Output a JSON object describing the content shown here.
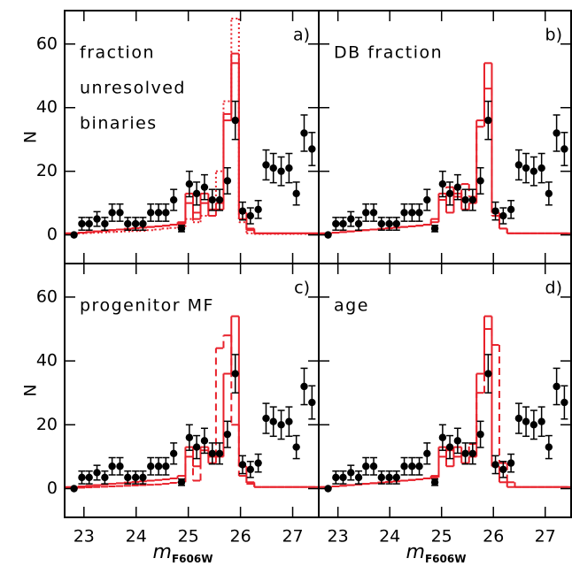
{
  "chart_data": [
    {
      "type": "step",
      "label": "a)",
      "annotation": [
        "fraction",
        "unresolved",
        "binaries"
      ],
      "ylabel": "N",
      "xlim": [
        22.63,
        27.5
      ],
      "ylim": [
        -9,
        70.5
      ],
      "xticks": [
        23,
        24,
        25,
        26,
        27
      ],
      "yticks": [
        0,
        20,
        40,
        60
      ],
      "x": [
        22.81,
        22.96,
        23.1,
        23.25,
        23.4,
        23.54,
        23.69,
        23.84,
        23.99,
        24.13,
        24.28,
        24.43,
        24.57,
        24.72,
        24.87,
        25.02,
        25.16,
        25.31,
        25.46,
        25.6,
        25.75,
        25.9,
        26.04,
        26.19,
        26.34,
        26.49,
        26.63,
        26.78,
        26.93,
        27.07,
        27.22,
        27.37
      ],
      "points": {
        "color": "#000000",
        "values": [
          0,
          3.5,
          3.5,
          5,
          3.5,
          7,
          7,
          3.5,
          3.5,
          3.5,
          7,
          7,
          7,
          11,
          2,
          16,
          13,
          15,
          11,
          11,
          17,
          36,
          7.5,
          6,
          8,
          22,
          21,
          20,
          21,
          13,
          32,
          27
        ],
        "errors": [
          0,
          2,
          2,
          2.3,
          2,
          2.7,
          2.7,
          2,
          2,
          2,
          2.7,
          2.7,
          2.7,
          3.3,
          1,
          4,
          3.6,
          3.9,
          3.3,
          3.3,
          4.1,
          6,
          2.8,
          2.5,
          2.8,
          4.7,
          4.6,
          4.5,
          4.6,
          3.6,
          5.7,
          5.2
        ]
      },
      "series": [
        {
          "color": "#e8202a",
          "dash": "solid",
          "values": [
            0.5,
            0.7,
            0.9,
            1.1,
            1.3,
            1.5,
            1.7,
            1.9,
            2.1,
            2.3,
            2.5,
            2.7,
            2.9,
            3.2,
            4,
            13,
            7,
            13,
            8,
            10,
            36,
            54,
            7,
            2,
            0.5,
            0.5,
            0.5,
            0.5,
            0.5,
            0.5,
            0.5,
            0.5
          ]
        },
        {
          "color": "#e8202a",
          "dash": "solid",
          "values": [
            0.5,
            0.7,
            0.9,
            1.1,
            1.3,
            1.5,
            1.7,
            1.9,
            2.1,
            2.3,
            2.5,
            2.7,
            2.9,
            3.2,
            3.5,
            10,
            5,
            10,
            6,
            8,
            38,
            57,
            5,
            1.5,
            0.5,
            0.5,
            0.5,
            0.5,
            0.5,
            0.5,
            0.5,
            0.5
          ]
        },
        {
          "color": "#e8202a",
          "dash": "dotted",
          "values": [
            0.4,
            0.5,
            0.6,
            0.7,
            0.8,
            0.9,
            1,
            1.1,
            1.2,
            1.3,
            1.5,
            1.7,
            2,
            2.2,
            2.5,
            5,
            4,
            6,
            8,
            20,
            42,
            68,
            4,
            0.5,
            0.3,
            0.3,
            0.3,
            0.3,
            0.3,
            0.3,
            0.3,
            0.3
          ]
        }
      ]
    },
    {
      "type": "step",
      "label": "b)",
      "annotation": [
        "DB fraction"
      ],
      "xlim": [
        22.63,
        27.5
      ],
      "ylim": [
        -9,
        70.5
      ],
      "xticks": [
        23,
        24,
        25,
        26,
        27
      ],
      "yticks": [
        0,
        20,
        40,
        60
      ],
      "x": [
        22.81,
        22.96,
        23.1,
        23.25,
        23.4,
        23.54,
        23.69,
        23.84,
        23.99,
        24.13,
        24.28,
        24.43,
        24.57,
        24.72,
        24.87,
        25.02,
        25.16,
        25.31,
        25.46,
        25.6,
        25.75,
        25.9,
        26.04,
        26.19,
        26.34,
        26.49,
        26.63,
        26.78,
        26.93,
        27.07,
        27.22,
        27.37
      ],
      "points": {
        "color": "#000000",
        "values": [
          0,
          3.5,
          3.5,
          5,
          3.5,
          7,
          7,
          3.5,
          3.5,
          3.5,
          7,
          7,
          7,
          11,
          2,
          16,
          13,
          15,
          11,
          11,
          17,
          36,
          7.5,
          6,
          8,
          22,
          21,
          20,
          21,
          13,
          32,
          27
        ],
        "errors": [
          0,
          2,
          2,
          2.3,
          2,
          2.7,
          2.7,
          2,
          2,
          2,
          2.7,
          2.7,
          2.7,
          3.3,
          1,
          4,
          3.6,
          3.9,
          3.3,
          3.3,
          4.1,
          6,
          2.8,
          2.5,
          2.8,
          4.7,
          4.6,
          4.5,
          4.6,
          3.6,
          5.7,
          5.2
        ]
      },
      "series": [
        {
          "color": "#e8202a",
          "dash": "solid",
          "values": [
            0.5,
            0.7,
            0.9,
            1.1,
            1.3,
            1.5,
            1.7,
            1.9,
            2.1,
            2.3,
            2.5,
            2.7,
            2.9,
            3.2,
            4,
            13,
            7,
            13,
            8,
            10,
            36,
            54,
            7,
            2,
            0.5,
            0.5,
            0.5,
            0.5,
            0.5,
            0.5,
            0.5,
            0.5
          ]
        },
        {
          "color": "#e8202a",
          "dash": "dashed",
          "values": [
            0.5,
            0.7,
            0.9,
            1.1,
            1.3,
            1.5,
            1.7,
            1.9,
            2.1,
            2.3,
            2.5,
            2.7,
            2.9,
            3.2,
            5,
            11,
            15,
            12,
            16,
            12,
            34,
            46,
            6,
            2,
            0.5,
            0.5,
            0.5,
            0.5,
            0.5,
            0.5,
            0.5,
            0.5
          ]
        }
      ]
    },
    {
      "type": "step",
      "label": "c)",
      "annotation": [
        "progenitor MF"
      ],
      "ylabel": "N",
      "xlabel": "m",
      "xlabel_sub": "F606W",
      "xlim": [
        22.63,
        27.5
      ],
      "ylim": [
        -9,
        70.5
      ],
      "xticks": [
        23,
        24,
        25,
        26,
        27
      ],
      "yticks": [
        0,
        20,
        40,
        60
      ],
      "x": [
        22.81,
        22.96,
        23.1,
        23.25,
        23.4,
        23.54,
        23.69,
        23.84,
        23.99,
        24.13,
        24.28,
        24.43,
        24.57,
        24.72,
        24.87,
        25.02,
        25.16,
        25.31,
        25.46,
        25.6,
        25.75,
        25.9,
        26.04,
        26.19,
        26.34,
        26.49,
        26.63,
        26.78,
        26.93,
        27.07,
        27.22,
        27.37
      ],
      "points": {
        "color": "#000000",
        "values": [
          0,
          3.5,
          3.5,
          5,
          3.5,
          7,
          7,
          3.5,
          3.5,
          3.5,
          7,
          7,
          7,
          11,
          2,
          16,
          13,
          15,
          11,
          11,
          17,
          36,
          7.5,
          6,
          8,
          22,
          21,
          20,
          21,
          13,
          32,
          27
        ],
        "errors": [
          0,
          2,
          2,
          2.3,
          2,
          2.7,
          2.7,
          2,
          2,
          2,
          2.7,
          2.7,
          2.7,
          3.3,
          1,
          4,
          3.6,
          3.9,
          3.3,
          3.3,
          4.1,
          6,
          2.8,
          2.5,
          2.8,
          4.7,
          4.6,
          4.5,
          4.6,
          3.6,
          5.7,
          5.2
        ]
      },
      "series": [
        {
          "color": "#e8202a",
          "dash": "solid",
          "values": [
            0.5,
            0.7,
            0.9,
            1.1,
            1.3,
            1.5,
            1.7,
            1.9,
            2.1,
            2.3,
            2.5,
            2.7,
            2.9,
            3.2,
            4,
            13,
            7,
            13,
            8,
            10,
            36,
            54,
            7,
            2,
            0.5,
            0.5,
            0.5,
            0.5,
            0.5,
            0.5,
            0.5,
            0.5
          ]
        },
        {
          "color": "#e8202a",
          "dash": "dashed",
          "values": [
            0.2,
            0.3,
            0.4,
            0.5,
            0.6,
            0.7,
            0.8,
            0.9,
            1,
            1.1,
            1.2,
            1.3,
            1.5,
            1.8,
            2,
            10,
            2.5,
            12,
            10,
            44,
            48,
            20,
            4,
            1.5,
            0.5,
            0.5,
            0.5,
            0.5,
            0.5,
            0.5,
            0.5,
            0.5
          ]
        }
      ]
    },
    {
      "type": "step",
      "label": "d)",
      "annotation": [
        "age"
      ],
      "xlabel": "m",
      "xlabel_sub": "F606W",
      "xlim": [
        22.63,
        27.5
      ],
      "ylim": [
        -9,
        70.5
      ],
      "xticks": [
        23,
        24,
        25,
        26,
        27
      ],
      "yticks": [
        0,
        20,
        40,
        60
      ],
      "x": [
        22.81,
        22.96,
        23.1,
        23.25,
        23.4,
        23.54,
        23.69,
        23.84,
        23.99,
        24.13,
        24.28,
        24.43,
        24.57,
        24.72,
        24.87,
        25.02,
        25.16,
        25.31,
        25.46,
        25.6,
        25.75,
        25.9,
        26.04,
        26.19,
        26.34,
        26.49,
        26.63,
        26.78,
        26.93,
        27.07,
        27.22,
        27.37
      ],
      "points": {
        "color": "#000000",
        "values": [
          0,
          3.5,
          3.5,
          5,
          3.5,
          7,
          7,
          3.5,
          3.5,
          3.5,
          7,
          7,
          7,
          11,
          2,
          16,
          13,
          15,
          11,
          11,
          17,
          36,
          7.5,
          6,
          8,
          22,
          21,
          20,
          21,
          13,
          32,
          27
        ],
        "errors": [
          0,
          2,
          2,
          2.3,
          2,
          2.7,
          2.7,
          2,
          2,
          2,
          2.7,
          2.7,
          2.7,
          3.3,
          1,
          4,
          3.6,
          3.9,
          3.3,
          3.3,
          4.1,
          6,
          2.8,
          2.5,
          2.8,
          4.7,
          4.6,
          4.5,
          4.6,
          3.6,
          5.7,
          5.2
        ]
      },
      "series": [
        {
          "color": "#e8202a",
          "dash": "solid",
          "values": [
            0.5,
            0.7,
            0.9,
            1.1,
            1.3,
            1.5,
            1.7,
            1.9,
            2.1,
            2.3,
            2.5,
            2.7,
            2.9,
            3.2,
            4,
            13,
            7,
            13,
            8,
            10,
            36,
            54,
            7,
            2,
            0.5,
            0.5,
            0.5,
            0.5,
            0.5,
            0.5,
            0.5,
            0.5
          ]
        },
        {
          "color": "#e8202a",
          "dash": "dashed",
          "values": [
            0.5,
            0.7,
            0.9,
            1.1,
            1.3,
            1.5,
            1.7,
            1.9,
            2.1,
            2.3,
            2.5,
            2.7,
            2.9,
            3.2,
            3.5,
            10,
            12,
            10,
            11,
            14,
            30,
            50,
            45,
            8,
            2,
            0.5,
            0.5,
            0.5,
            0.5,
            0.5,
            0.5,
            0.5
          ]
        }
      ]
    }
  ]
}
